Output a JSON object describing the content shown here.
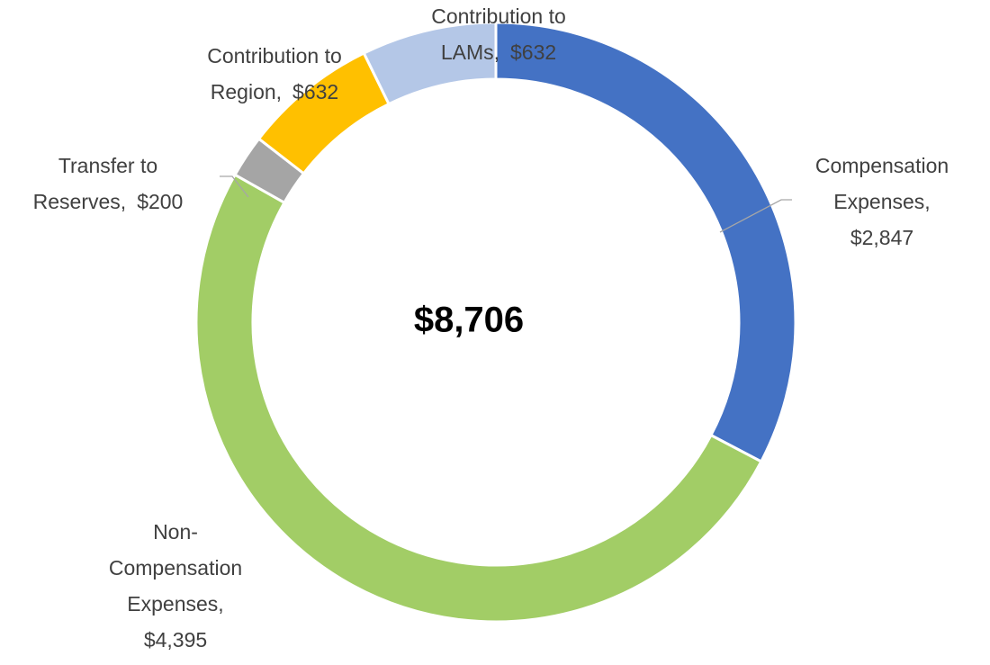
{
  "chart_data": {
    "type": "donut",
    "center_label": "$8,706",
    "categories": [
      [
        "Compensation",
        "Expenses,"
      ],
      [
        "Non-",
        "Compensation",
        "Expenses,"
      ],
      [
        "Transfer to",
        "Reserves,"
      ],
      [
        "Contribution to",
        "Region,"
      ],
      [
        "Contribution to",
        "LAMs,"
      ]
    ],
    "values": [
      2847,
      4395,
      200,
      632,
      632
    ],
    "value_labels": [
      "$2,847",
      "$4,395",
      "$200",
      "$632",
      "$632"
    ],
    "colors": [
      "#4472c4",
      "#a2cd66",
      "#a5a5a5",
      "#ffc000",
      "#b4c7e7"
    ]
  }
}
